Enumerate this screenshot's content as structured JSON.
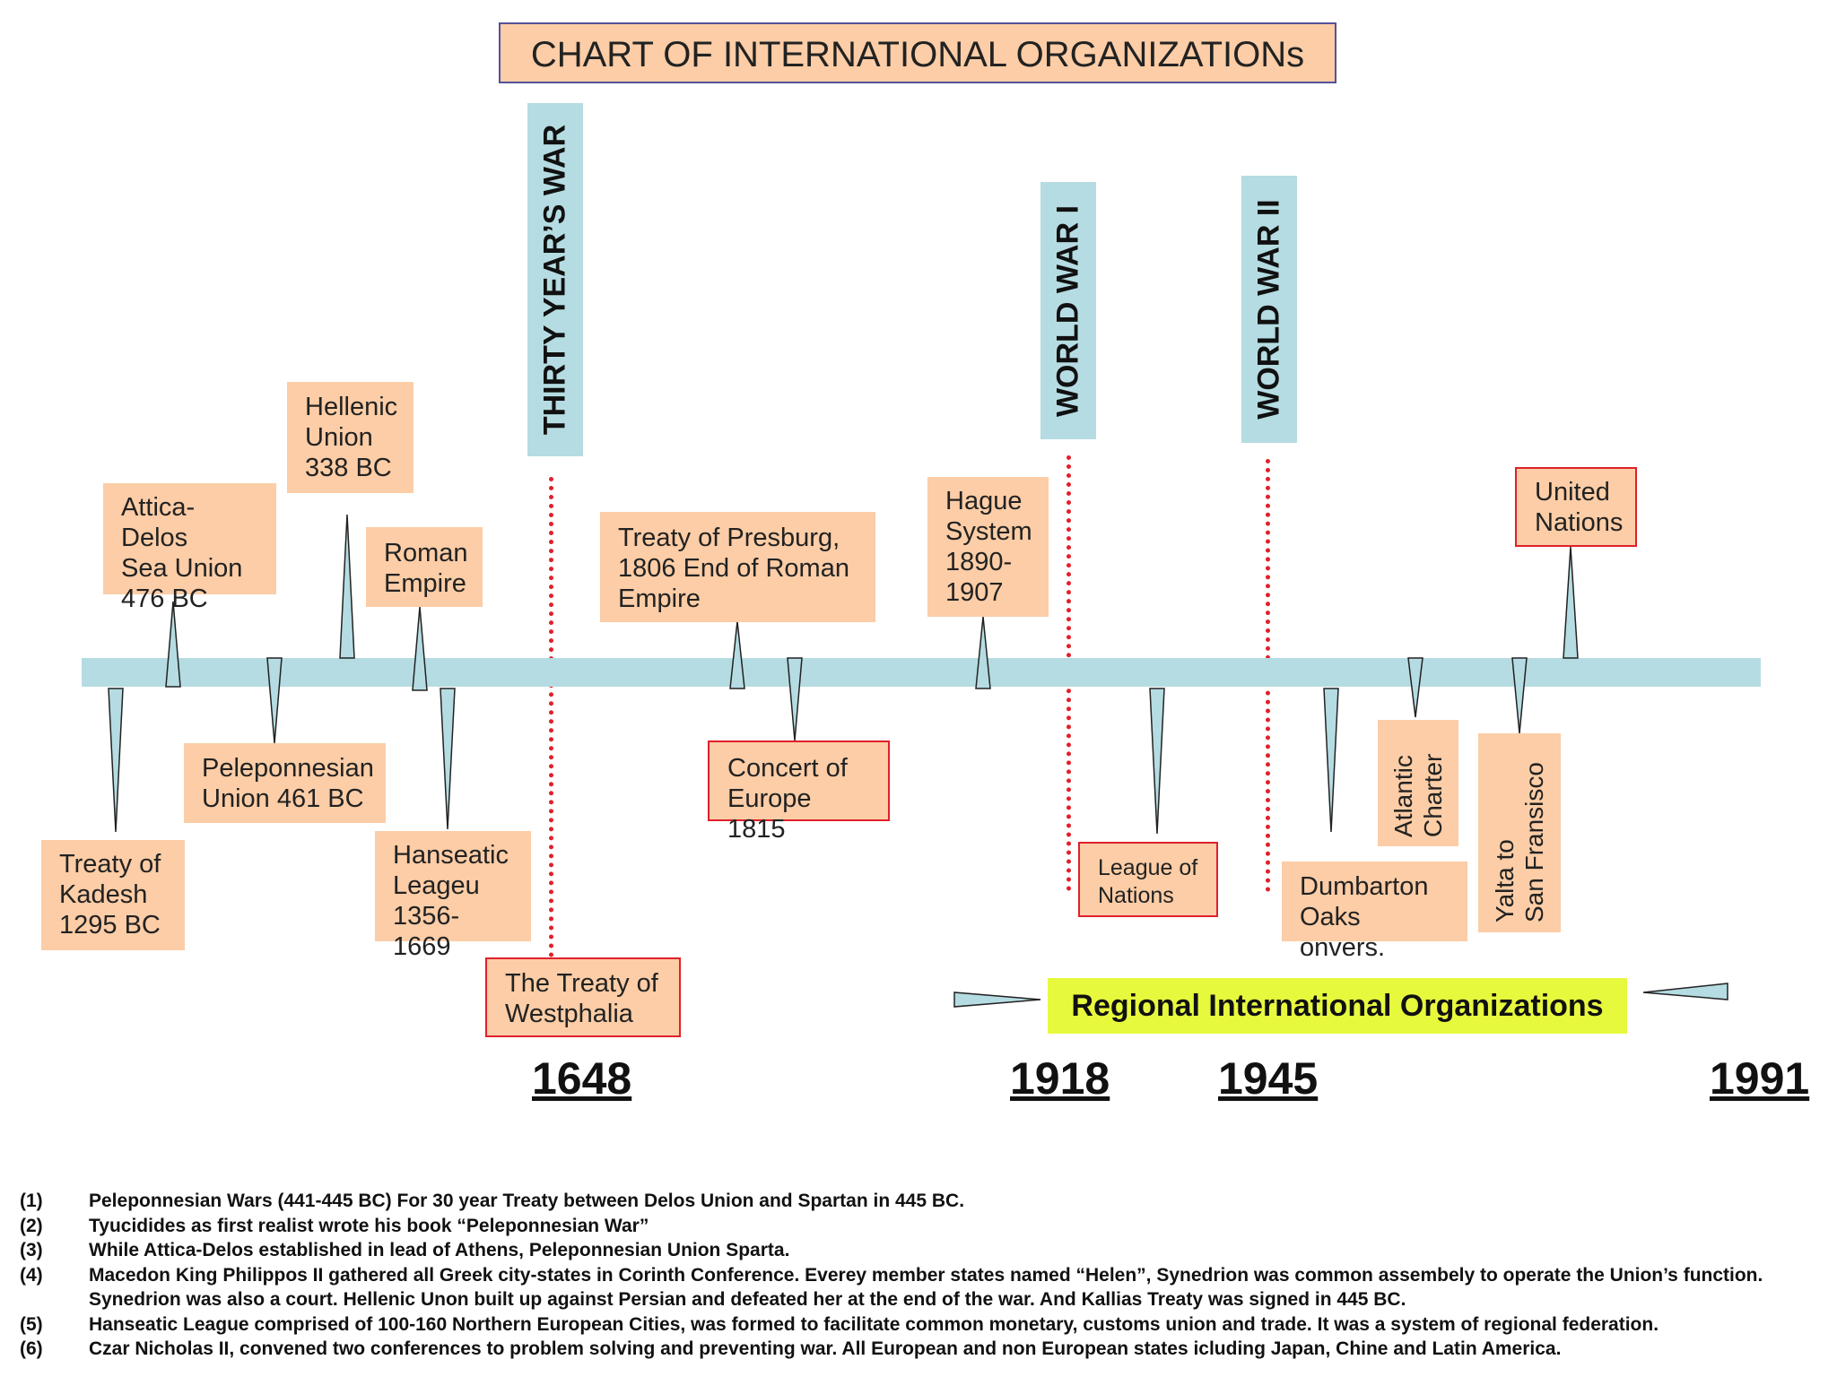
{
  "title": "CHART OF INTERNATIONAL ORGANIZATIONs",
  "wars": {
    "thirty_years": "THIRTY YEAR’S WAR",
    "ww1": "WORLD WAR   I",
    "ww2": "WORLD WAR   II"
  },
  "years": {
    "y1648": "1648",
    "y1918": "1918",
    "y1945": "1945",
    "y1991": "1991"
  },
  "events": {
    "attica_delos": "Attica-Delos\nSea Union\n476 BC",
    "hellenic": "Hellenic\nUnion\n338 BC",
    "roman": "Roman\nEmpire",
    "presburg": "Treaty of Presburg,\n1806 End of Roman\nEmpire",
    "hague": "Hague\nSystem\n1890-\n1907",
    "united_nations": "United\nNations",
    "kadesh": "Treaty of\nKadesh\n1295 BC",
    "peleponnesian": "Peleponnesian\nUnion 461 BC",
    "hanseatic": "Hanseatic\nLeageu\n1356-1669",
    "westphalia": "The Treaty of\nWestphalia",
    "concert": "Concert of\nEurope 1815",
    "league": "League of\nNations",
    "dumbarton": "Dumbarton\nOaks onvers.",
    "atlantic": "Atlantic\nCharter",
    "yalta": "Yalta to\nSan Fransisco"
  },
  "regional": "Regional International Organizations",
  "notes": [
    {
      "num": "(1)",
      "text": "Peleponnesian Wars (441-445 BC) For 30 year Treaty between Delos Union and Spartan in 445 BC."
    },
    {
      "num": "(2)",
      "text": "Tyucidides as first realist wrote his book “Peleponnesian War”"
    },
    {
      "num": "(3)",
      "text": "While Attica-Delos established in lead of Athens, Peleponnesian Union Sparta."
    },
    {
      "num": "(4)",
      "text": "Macedon King Philippos II gathered all Greek city-states in Corinth Conference. Everey member states named “Helen”, Synedrion was common assembely to operate the Union’s function. Synedrion was also a court. Hellenic Unon built up against Persian and defeated  her at the end of the war. And Kallias Treaty was signed in 445 BC."
    },
    {
      "num": "(5)",
      "text": "Hanseatic League comprised of 100-160 Northern European Cities, was formed to facilitate common  monetary, customs union and  trade. It was a system of regional federation."
    },
    {
      "num": "(6)",
      "text": "Czar Nicholas II, convened two conferences to problem solving and preventing war. All European and non European states icluding Japan, Chine and Latin America."
    }
  ],
  "colors": {
    "box_fill": "#fccda6",
    "timeline": "#b5dce2",
    "red_border": "#e0202a",
    "regional_fill": "#e7f93d"
  }
}
